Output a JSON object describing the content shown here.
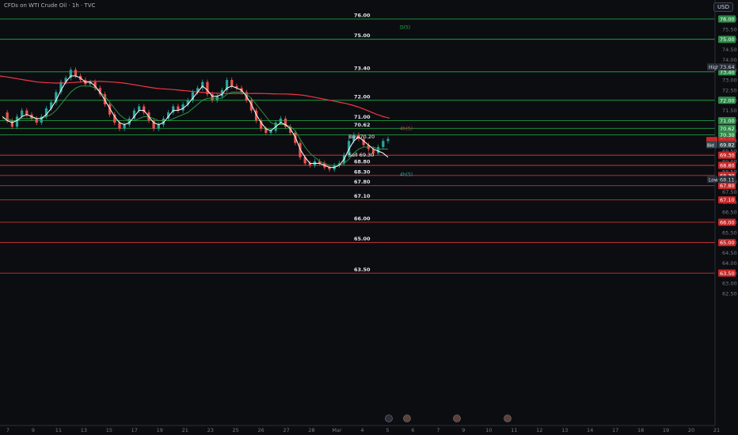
{
  "window": {
    "title": "CFDs on WTI Crude Oil · 1h · TVC",
    "currency": "USD"
  },
  "colors": {
    "background": "#0c0d11",
    "support": "#21b24a",
    "resistance": "#e53a3a",
    "price_line": "#e53935",
    "up_candle": "#26a69a",
    "down_candle": "#ef5350",
    "ma_slow": "#f23645",
    "ma_fast": "#ffffff",
    "ma_mid": "#2e9e44"
  },
  "chart_data": {
    "type": "candlestick",
    "title": "CFDs on WTI Crude Oil · 1h · TVC",
    "ylim": [
      62.3,
      76.6
    ],
    "x_ticks": [
      "7",
      "9",
      "11",
      "13",
      "15",
      "17",
      "19",
      "21",
      "23",
      "25",
      "26",
      "27",
      "28",
      "Mar",
      "4",
      "5",
      "6",
      "7",
      "9",
      "10",
      "11",
      "12",
      "13",
      "14",
      "17",
      "18",
      "19",
      "20",
      "21"
    ],
    "y_ticks": [
      62.5,
      63.0,
      63.5,
      64.0,
      64.5,
      65.0,
      65.5,
      66.0,
      66.5,
      67.0,
      67.5,
      68.0,
      68.5,
      69.0,
      69.5,
      70.0,
      70.5,
      71.0,
      71.5,
      72.0,
      72.5,
      73.0,
      73.5,
      74.0,
      74.5,
      75.0,
      75.5,
      76.0
    ],
    "y_tick_labels": [
      "62.50",
      "63.00",
      "63.50",
      "64.00",
      "64.50",
      "65.00",
      "65.50",
      "66.00",
      "66.50",
      "67.00",
      "67.50",
      "68.00",
      "68.50",
      "69.00",
      "69.50",
      "70.00",
      "70.50",
      "71.00",
      "71.50",
      "72.00",
      "72.50",
      "73.00",
      "73.50",
      "74.00",
      "74.50",
      "75.00",
      "75.50",
      "76.00"
    ],
    "support_levels": [
      76.0,
      75.0,
      73.4,
      72.0,
      71.0,
      70.62,
      70.3
    ],
    "support_labels": [
      "76.00",
      "75.00",
      "73.40",
      "72.00",
      "71.00",
      "70.62",
      ""
    ],
    "support_axis_labels": [
      "76.00",
      "75.00",
      "73.40",
      "72.00",
      "71.00",
      "70.62",
      "70.30"
    ],
    "resistance_levels": [
      69.3,
      68.8,
      68.3,
      67.8,
      67.1,
      66.0,
      65.0,
      63.5
    ],
    "resistance_labels": [
      "",
      "68.80",
      "68.30",
      "67.80",
      "67.10",
      "66.00",
      "65.00",
      "63.50"
    ],
    "resistance_axis_labels": [
      "69.30",
      "68.80",
      "68.30",
      "67.80",
      "67.10",
      "66.00",
      "65.00",
      "63.50"
    ],
    "line_tags": [
      {
        "text": "D(5)",
        "price": 75.6,
        "color": "#21b24a"
      },
      {
        "text": "4h(5)",
        "price": 70.62,
        "color": "#e53a3a"
      },
      {
        "text": "4h(5)",
        "price": 68.35,
        "color": "#26a69a"
      }
    ],
    "trade_labels": [
      {
        "text": "Buy 70.20",
        "price": 70.2
      },
      {
        "text": "Sell 69.30",
        "price": 69.3
      }
    ],
    "high": {
      "label": "High",
      "value": "73.64"
    },
    "low": {
      "label": "Low",
      "value": "68.11"
    },
    "quote": {
      "ask_label": "Ask",
      "ask": "70.02",
      "symbol": "USOIL",
      "last": "69.92",
      "bid_label": "Bid",
      "bid": "69.82",
      "extra": "70.05"
    },
    "price_series": [
      71.4,
      71.0,
      70.7,
      71.2,
      71.5,
      71.3,
      71.1,
      70.9,
      71.2,
      71.6,
      71.9,
      72.4,
      72.9,
      73.1,
      73.5,
      73.2,
      73.0,
      72.8,
      72.9,
      72.6,
      72.3,
      71.8,
      71.3,
      70.9,
      70.6,
      70.8,
      71.1,
      71.5,
      71.7,
      71.4,
      71.0,
      70.6,
      70.8,
      71.1,
      71.4,
      71.7,
      71.5,
      71.8,
      72.0,
      72.4,
      72.6,
      72.9,
      72.3,
      72.0,
      72.2,
      72.5,
      73.0,
      72.7,
      72.6,
      72.4,
      72.0,
      71.5,
      71.0,
      70.6,
      70.4,
      70.5,
      70.9,
      71.1,
      70.7,
      70.4,
      69.9,
      69.2,
      68.9,
      68.8,
      69.0,
      68.9,
      68.7,
      68.6,
      68.8,
      68.9,
      69.3,
      70.0,
      70.3,
      70.1,
      69.8,
      69.6,
      69.4,
      69.7,
      70.0,
      70.1
    ],
    "ma_fast_series": [
      71.2,
      71.0,
      70.9,
      71.0,
      71.2,
      71.3,
      71.2,
      71.1,
      71.1,
      71.3,
      71.6,
      72.0,
      72.5,
      72.9,
      73.2,
      73.2,
      73.1,
      72.9,
      72.9,
      72.7,
      72.4,
      72.0,
      71.6,
      71.2,
      70.9,
      70.8,
      70.9,
      71.2,
      71.5,
      71.5,
      71.2,
      70.9,
      70.8,
      70.9,
      71.2,
      71.5,
      71.5,
      71.6,
      71.8,
      72.1,
      72.4,
      72.7,
      72.5,
      72.2,
      72.2,
      72.3,
      72.6,
      72.7,
      72.6,
      72.5,
      72.2,
      71.8,
      71.3,
      70.9,
      70.6,
      70.5,
      70.7,
      70.9,
      70.8,
      70.6,
      70.2,
      69.6,
      69.2,
      68.9,
      68.9,
      68.9,
      68.8,
      68.7,
      68.7,
      68.8,
      69.1,
      69.6,
      70.0,
      70.2,
      70.0,
      69.8,
      69.6,
      69.5,
      69.4,
      69.2
    ],
    "ma_mid_series": [
      71.1,
      71.1,
      71.0,
      71.0,
      71.1,
      71.1,
      71.1,
      71.1,
      71.1,
      71.2,
      71.3,
      71.5,
      71.8,
      72.1,
      72.4,
      72.6,
      72.7,
      72.7,
      72.7,
      72.6,
      72.4,
      72.2,
      71.9,
      71.6,
      71.3,
      71.1,
      71.0,
      71.0,
      71.1,
      71.2,
      71.2,
      71.1,
      71.0,
      71.0,
      71.0,
      71.1,
      71.2,
      71.3,
      71.4,
      71.6,
      71.8,
      72.0,
      72.1,
      72.1,
      72.1,
      72.1,
      72.3,
      72.4,
      72.4,
      72.4,
      72.3,
      72.1,
      71.8,
      71.5,
      71.2,
      70.9,
      70.8,
      70.8,
      70.8,
      70.7,
      70.5,
      70.1,
      69.7,
      69.4,
      69.2,
      69.0,
      68.9,
      68.8,
      68.8,
      68.8,
      68.9,
      69.1,
      69.4,
      69.6,
      69.7,
      69.7,
      69.7,
      69.6,
      69.6,
      69.6
    ],
    "ma_slow_series": [
      73.2,
      73.15,
      73.1,
      73.05,
      73.0,
      72.95,
      72.9,
      72.88,
      72.86,
      72.85,
      72.85,
      72.86,
      72.88,
      72.9,
      72.92,
      72.93,
      72.93,
      72.92,
      72.9,
      72.88,
      72.85,
      72.8,
      72.75,
      72.7,
      72.65,
      72.6,
      72.57,
      72.55,
      72.53,
      72.5,
      72.47,
      72.44,
      72.41,
      72.38,
      72.36,
      72.35,
      72.34,
      72.33,
      72.33,
      72.33,
      72.33,
      72.34,
      72.34,
      72.33,
      72.32,
      72.31,
      72.31,
      72.3,
      72.28,
      72.25,
      72.2,
      72.14,
      72.08,
      72.02,
      71.96,
      71.9,
      71.84,
      71.76,
      71.66,
      71.55,
      71.42,
      71.3,
      71.2,
      71.12
    ],
    "event_icons": [
      "flash-icon",
      "economic-event-icon",
      "economic-event-icon",
      "economic-event-icon"
    ]
  }
}
